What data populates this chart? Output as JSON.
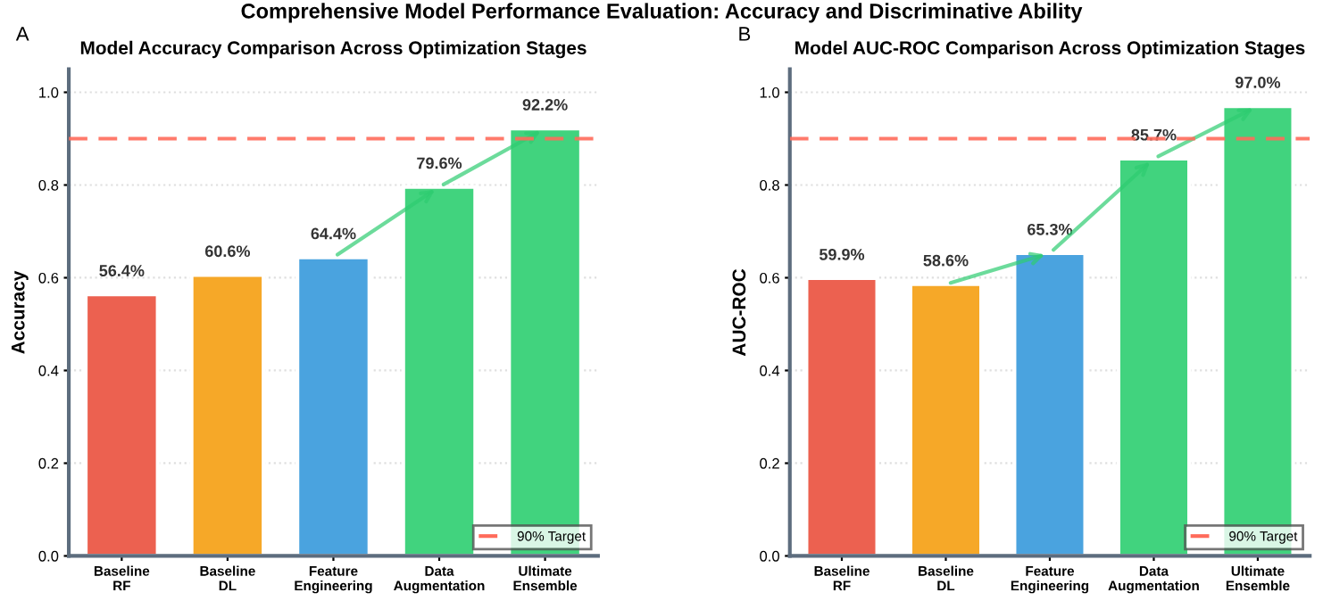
{
  "chart_data": [
    {
      "type": "bar",
      "title": "Model Accuracy Comparison Across Optimization Stages",
      "ylabel": "Accuracy",
      "categories": [
        "Baseline\nRF",
        "Baseline\nDL",
        "Feature\nEngineering",
        "Data\nAugmentation",
        "Ultimate\nEnsemble"
      ],
      "values": [
        0.564,
        0.606,
        0.644,
        0.796,
        0.922
      ],
      "colors": [
        "#ec6150",
        "#f6a828",
        "#4aa3df",
        "#41d37e",
        "#41d37e"
      ],
      "value_labels": [
        "56.4%",
        "60.6%",
        "64.4%",
        "79.6%",
        "92.2%"
      ],
      "ylim": [
        0,
        1.05
      ],
      "yticks": [
        {
          "value": 0,
          "label": "0.0"
        },
        {
          "value": 0.2,
          "label": "0.2"
        },
        {
          "value": 0.4,
          "label": "0.4"
        },
        {
          "value": 0.6,
          "label": "0.6"
        },
        {
          "value": 0.8,
          "label": "0.8"
        },
        {
          "value": 1.0,
          "label": "1.0"
        }
      ],
      "ref_lines": [
        {
          "axis": "y",
          "value": 0.9,
          "label": "90% Target",
          "color": "#ff6b5b",
          "line_style": "dashed"
        }
      ],
      "grid": "y",
      "legend": "bottom right",
      "annotations": [
        "Comprehensive Model Performance Evaluation: Accuracy and Discriminative Ability",
        "A"
      ]
    },
    {
      "type": "bar",
      "title": "Model AUC-ROC Comparison Across Optimization Stages",
      "ylabel": "AUC-ROC",
      "categories": [
        "Baseline\nRF",
        "Baseline\nDL",
        "Feature\nEngineering",
        "Data\nAugmentation",
        "Ultimate\nEnsemble"
      ],
      "values": [
        0.599,
        0.586,
        0.653,
        0.857,
        0.97
      ],
      "colors": [
        "#ec6150",
        "#f6a828",
        "#4aa3df",
        "#41d37e",
        "#41d37e"
      ],
      "value_labels": [
        "59.9%",
        "58.6%",
        "65.3%",
        "85.7%",
        "97.0%"
      ],
      "ylim": [
        0,
        1.05
      ],
      "yticks": [
        {
          "value": 0,
          "label": "0.0"
        },
        {
          "value": 0.2,
          "label": "0.2"
        },
        {
          "value": 0.4,
          "label": "0.4"
        },
        {
          "value": 0.6,
          "label": "0.6"
        },
        {
          "value": 0.8,
          "label": "0.8"
        },
        {
          "value": 1.0,
          "label": "1.0"
        }
      ],
      "ref_lines": [
        {
          "axis": "y",
          "value": 0.9,
          "label": "90% Target",
          "color": "#ff6b5b",
          "line_style": "dashed"
        }
      ],
      "grid": "y",
      "legend": "bottom right",
      "annotations": [
        "B"
      ]
    }
  ]
}
